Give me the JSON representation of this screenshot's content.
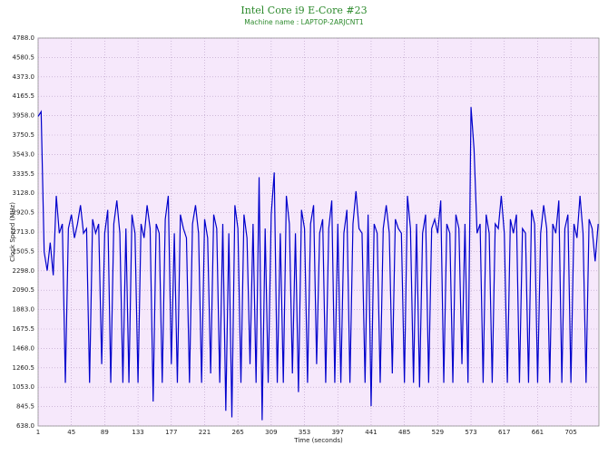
{
  "chart_data": {
    "type": "line",
    "title": "Intel Core i9 E-Core #23",
    "subtitle": "Machine name : LAPTOP-2ARJCNT1",
    "x_label": "Time (seconds)",
    "y_label": "Clock Speed (MHz)",
    "grid": true,
    "background": "#f6e8fb",
    "x": [
      1,
      5,
      9,
      13,
      17,
      21,
      25,
      29,
      33,
      37,
      41,
      45,
      49,
      53,
      57,
      61,
      65,
      69,
      73,
      77,
      81,
      85,
      89,
      93,
      97,
      101,
      105,
      109,
      113,
      117,
      121,
      125,
      129,
      133,
      137,
      141,
      145,
      149,
      153,
      157,
      161,
      165,
      169,
      173,
      177,
      181,
      185,
      189,
      193,
      197,
      201,
      205,
      209,
      213,
      217,
      221,
      225,
      229,
      233,
      237,
      241,
      245,
      249,
      253,
      257,
      261,
      265,
      269,
      273,
      277,
      281,
      285,
      289,
      293,
      297,
      301,
      305,
      309,
      313,
      317,
      321,
      325,
      329,
      333,
      337,
      341,
      345,
      349,
      353,
      357,
      361,
      365,
      369,
      373,
      377,
      381,
      385,
      389,
      393,
      397,
      401,
      405,
      409,
      413,
      417,
      421,
      425,
      429,
      433,
      437,
      441,
      445,
      449,
      453,
      457,
      461,
      465,
      469,
      473,
      477,
      481,
      485,
      489,
      493,
      497,
      501,
      505,
      509,
      513,
      517,
      521,
      525,
      529,
      533,
      537,
      541,
      545,
      549,
      553,
      557,
      561,
      565,
      569,
      573,
      577,
      581,
      585,
      589,
      593,
      597,
      601,
      605,
      609,
      613,
      617,
      621,
      625,
      629,
      633,
      637,
      641,
      645,
      649,
      653,
      657,
      661,
      665,
      669,
      673,
      677,
      681,
      685,
      689,
      693,
      697,
      701,
      705,
      709,
      713,
      717,
      721,
      725,
      729,
      733,
      737,
      741
    ],
    "series": [
      {
        "color": "#0000cc",
        "values": [
          3950,
          4000,
          2500,
          2300,
          2600,
          2250,
          3100,
          2700,
          2800,
          1100,
          2750,
          2900,
          2650,
          2800,
          3000,
          2700,
          2750,
          1100,
          2850,
          2700,
          2800,
          1300,
          2700,
          2950,
          1100,
          2800,
          3050,
          2700,
          1100,
          2750,
          1100,
          2900,
          2700,
          1100,
          2800,
          2650,
          3000,
          2750,
          900,
          2800,
          2700,
          1100,
          2850,
          3100,
          1300,
          2700,
          1100,
          2900,
          2750,
          2650,
          1100,
          2800,
          3000,
          2700,
          1100,
          2850,
          2650,
          1200,
          2900,
          2750,
          1100,
          2800,
          800,
          2700,
          730,
          3000,
          2750,
          1100,
          2900,
          2650,
          1300,
          2800,
          1100,
          3300,
          700,
          2750,
          1100,
          2900,
          3350,
          1100,
          2700,
          1100,
          3100,
          2800,
          1200,
          2700,
          1000,
          2950,
          2750,
          1100,
          2800,
          3000,
          1300,
          2700,
          2850,
          1100,
          2750,
          3050,
          1100,
          2800,
          1100,
          2700,
          2950,
          1100,
          2800,
          3150,
          2750,
          2700,
          1100,
          2900,
          850,
          2800,
          2700,
          1100,
          2750,
          3000,
          2700,
          1200,
          2850,
          2750,
          2700,
          1100,
          3100,
          2750,
          1100,
          2800,
          1050,
          2700,
          2900,
          1100,
          2750,
          2850,
          2700,
          3050,
          1100,
          2800,
          2700,
          1100,
          2900,
          2750,
          1300,
          2800,
          1100,
          4050,
          3600,
          2700,
          2800,
          1100,
          2900,
          2700,
          1100,
          2800,
          2750,
          3100,
          2700,
          1100,
          2850,
          2700,
          2900,
          1100,
          2750,
          2700,
          1100,
          2950,
          2800,
          1100,
          2700,
          3000,
          2750,
          1100,
          2800,
          2700,
          3050,
          1100,
          2750,
          2900,
          1100,
          2800,
          2650,
          3100,
          2700,
          1100,
          2850,
          2750,
          2400,
          2800
        ]
      }
    ],
    "xlim": [
      1,
      742
    ],
    "xticks": [
      1,
      45,
      89,
      133,
      177,
      221,
      265,
      309,
      353,
      397,
      441,
      485,
      529,
      573,
      617,
      661,
      705
    ],
    "ylim": [
      638,
      4788
    ],
    "yticks": [
      {
        "value": 638,
        "label": "638.0"
      },
      {
        "value": 845.5,
        "label": "845.5"
      },
      {
        "value": 1053,
        "label": "1053.0"
      },
      {
        "value": 1260.5,
        "label": "1260.5"
      },
      {
        "value": 1468,
        "label": "1468.0"
      },
      {
        "value": 1675.5,
        "label": "1675.5"
      },
      {
        "value": 1883,
        "label": "1883.0"
      },
      {
        "value": 2090.5,
        "label": "2090.5"
      },
      {
        "value": 2298,
        "label": "2298.0"
      },
      {
        "value": 2505.5,
        "label": "2505.5"
      },
      {
        "value": 2713,
        "label": "2713.0"
      },
      {
        "value": 2920.5,
        "label": "2920.5"
      },
      {
        "value": 3128,
        "label": "3128.0"
      },
      {
        "value": 3335.5,
        "label": "3335.5"
      },
      {
        "value": 3543,
        "label": "3543.0"
      },
      {
        "value": 3750.5,
        "label": "3750.5"
      },
      {
        "value": 3958,
        "label": "3958.0"
      },
      {
        "value": 4165.5,
        "label": "4165.5"
      },
      {
        "value": 4373,
        "label": "4373.0"
      },
      {
        "value": 4580.5,
        "label": "4580.5"
      },
      {
        "value": 4788,
        "label": "4788.0"
      }
    ]
  }
}
